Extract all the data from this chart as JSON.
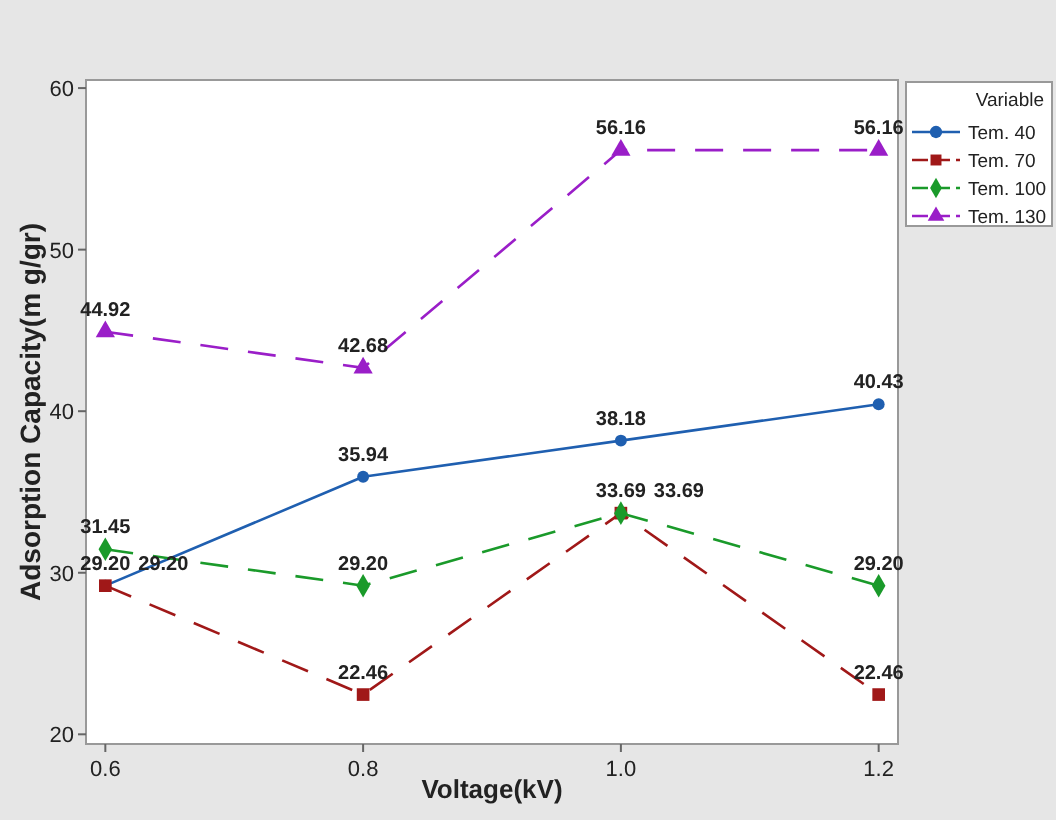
{
  "chart_data": {
    "type": "line",
    "xlabel": "Voltage(kV)",
    "ylabel": "Adsorption Capacity(m g/gr)",
    "legend_title": "Variable",
    "legend": "top right",
    "x": [
      0.6,
      0.8,
      1.0,
      1.2
    ],
    "xlim": [
      0.585,
      1.215
    ],
    "xticks": [
      0.6,
      0.8,
      {
        "value": 1.0,
        "label": "1.0"
      },
      1.2
    ],
    "ylim": [
      19.4,
      60.5
    ],
    "yticks": [
      20,
      30,
      40,
      50,
      60
    ],
    "grid": false,
    "series": [
      {
        "name": "Tem. 40",
        "color": "#1f5fb0",
        "values": [
          29.2,
          35.94,
          38.18,
          40.43
        ],
        "value_labels": [
          "29.20",
          "35.94",
          "38.18",
          "40.43"
        ],
        "marker": "circle",
        "line_style": "solid"
      },
      {
        "name": "Tem. 70",
        "color": "#a01818",
        "values": [
          29.2,
          22.46,
          33.69,
          22.46
        ],
        "value_labels": [
          "29.20",
          "22.46",
          "33.69",
          "22.46"
        ],
        "marker": "square",
        "line_style": "dashed"
      },
      {
        "name": "Tem. 100",
        "color": "#1a9a2a",
        "values": [
          31.45,
          29.2,
          33.69,
          29.2
        ],
        "value_labels": [
          "31.45",
          "29.20",
          "33.69",
          "29.20"
        ],
        "marker": "diamond",
        "line_style": "dashed"
      },
      {
        "name": "Tem. 130",
        "color": "#9a1ec8",
        "values": [
          44.92,
          42.68,
          56.16,
          56.16
        ],
        "value_labels": [
          "44.92",
          "42.68",
          "56.16",
          "56.16"
        ],
        "marker": "triangle",
        "line_style": "dashed"
      }
    ]
  }
}
